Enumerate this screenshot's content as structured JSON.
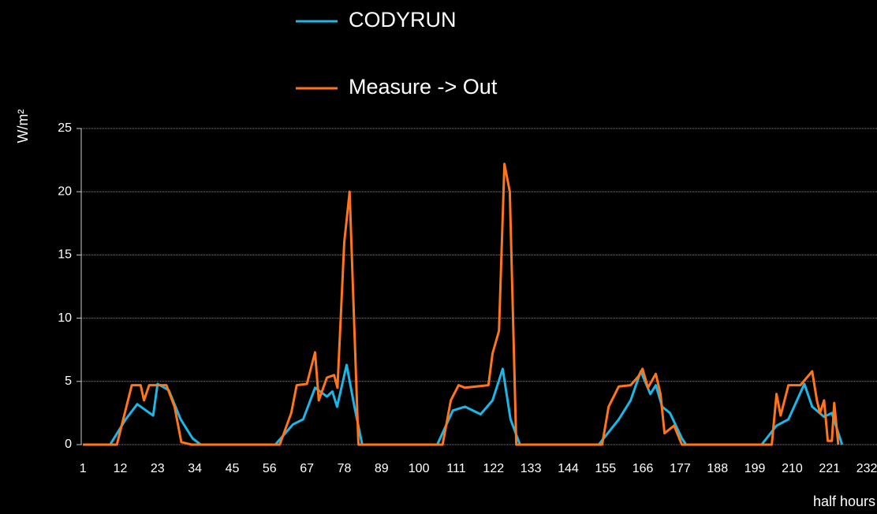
{
  "chart_data": {
    "type": "line",
    "y_label": "W/m²",
    "x_label": "half hours",
    "xlim": [
      0.5,
      235
    ],
    "ylim": [
      0,
      25
    ],
    "xticks": [
      1,
      12,
      23,
      34,
      45,
      56,
      67,
      78,
      89,
      100,
      111,
      122,
      133,
      144,
      155,
      166,
      177,
      188,
      199,
      210,
      221,
      232
    ],
    "yticks": [
      0,
      5,
      10,
      15,
      20,
      25
    ],
    "grid": true,
    "series": [
      {
        "name": "CODYRUN",
        "color": "#1ab8e8",
        "x": [
          1,
          9,
          13.6,
          17,
          21.7,
          23,
          26.3,
          29.8,
          33.3,
          35.7,
          57.7,
          62.9,
          65.9,
          69.4,
          72.9,
          74.5,
          75.9,
          78.7,
          81,
          83.3,
          105.4,
          110,
          113.6,
          118.2,
          121.7,
          124.7,
          127,
          129.8,
          153,
          158.9,
          162.4,
          165.4,
          168.2,
          169.8,
          171.7,
          174,
          177.5,
          178.7,
          201,
          205.4,
          208.9,
          213.6,
          215.9,
          219.4,
          221.7,
          224.7
        ],
        "values": [
          0,
          0,
          2,
          3.2,
          2.3,
          4.8,
          4.3,
          2,
          0.5,
          0,
          0,
          1.6,
          2,
          4.5,
          3.8,
          4.2,
          3,
          6.3,
          3,
          0,
          0,
          2.7,
          3,
          2.4,
          3.5,
          6,
          2,
          0,
          0,
          2,
          3.5,
          5.8,
          4,
          4.7,
          3,
          2.5,
          0.5,
          0,
          0,
          1.5,
          2,
          4.8,
          3,
          2.2,
          2.5,
          0
        ]
      },
      {
        "name": "Measure -> Out",
        "color": "#ff7518",
        "x": [
          1,
          11,
          15.4,
          18,
          19,
          20.5,
          25.6,
          28,
          30,
          33,
          59,
          62.4,
          64,
          67,
          69.4,
          70.5,
          72.9,
          75,
          76,
          78,
          79.6,
          81,
          82.2,
          107,
          109.4,
          111.7,
          113.6,
          120.5,
          121.7,
          123.6,
          125.2,
          126.8,
          128.7,
          154,
          155.9,
          158.9,
          162.4,
          164.7,
          165.9,
          167.5,
          169.8,
          171.2,
          172.4,
          175.2,
          177.5,
          204,
          205.4,
          206.6,
          208.9,
          212.4,
          215.9,
          217.3,
          218.2,
          219.4,
          220.5,
          221.7,
          222.4,
          223.6
        ],
        "values": [
          0,
          0,
          4.7,
          4.7,
          3.5,
          4.7,
          4.7,
          3,
          0.2,
          0,
          0,
          2.5,
          4.7,
          4.8,
          7.3,
          3.5,
          5.3,
          5.5,
          4.5,
          16,
          20,
          9,
          0,
          0,
          3.5,
          4.7,
          4.5,
          4.7,
          7.2,
          9,
          22.2,
          20,
          0,
          0,
          3,
          4.6,
          4.7,
          5.4,
          6,
          4.5,
          5.6,
          4,
          0.9,
          1.5,
          0,
          0,
          4,
          2.3,
          4.7,
          4.7,
          5.8,
          3.5,
          2.5,
          3.5,
          0.3,
          0.3,
          3.3,
          0
        ]
      }
    ]
  }
}
